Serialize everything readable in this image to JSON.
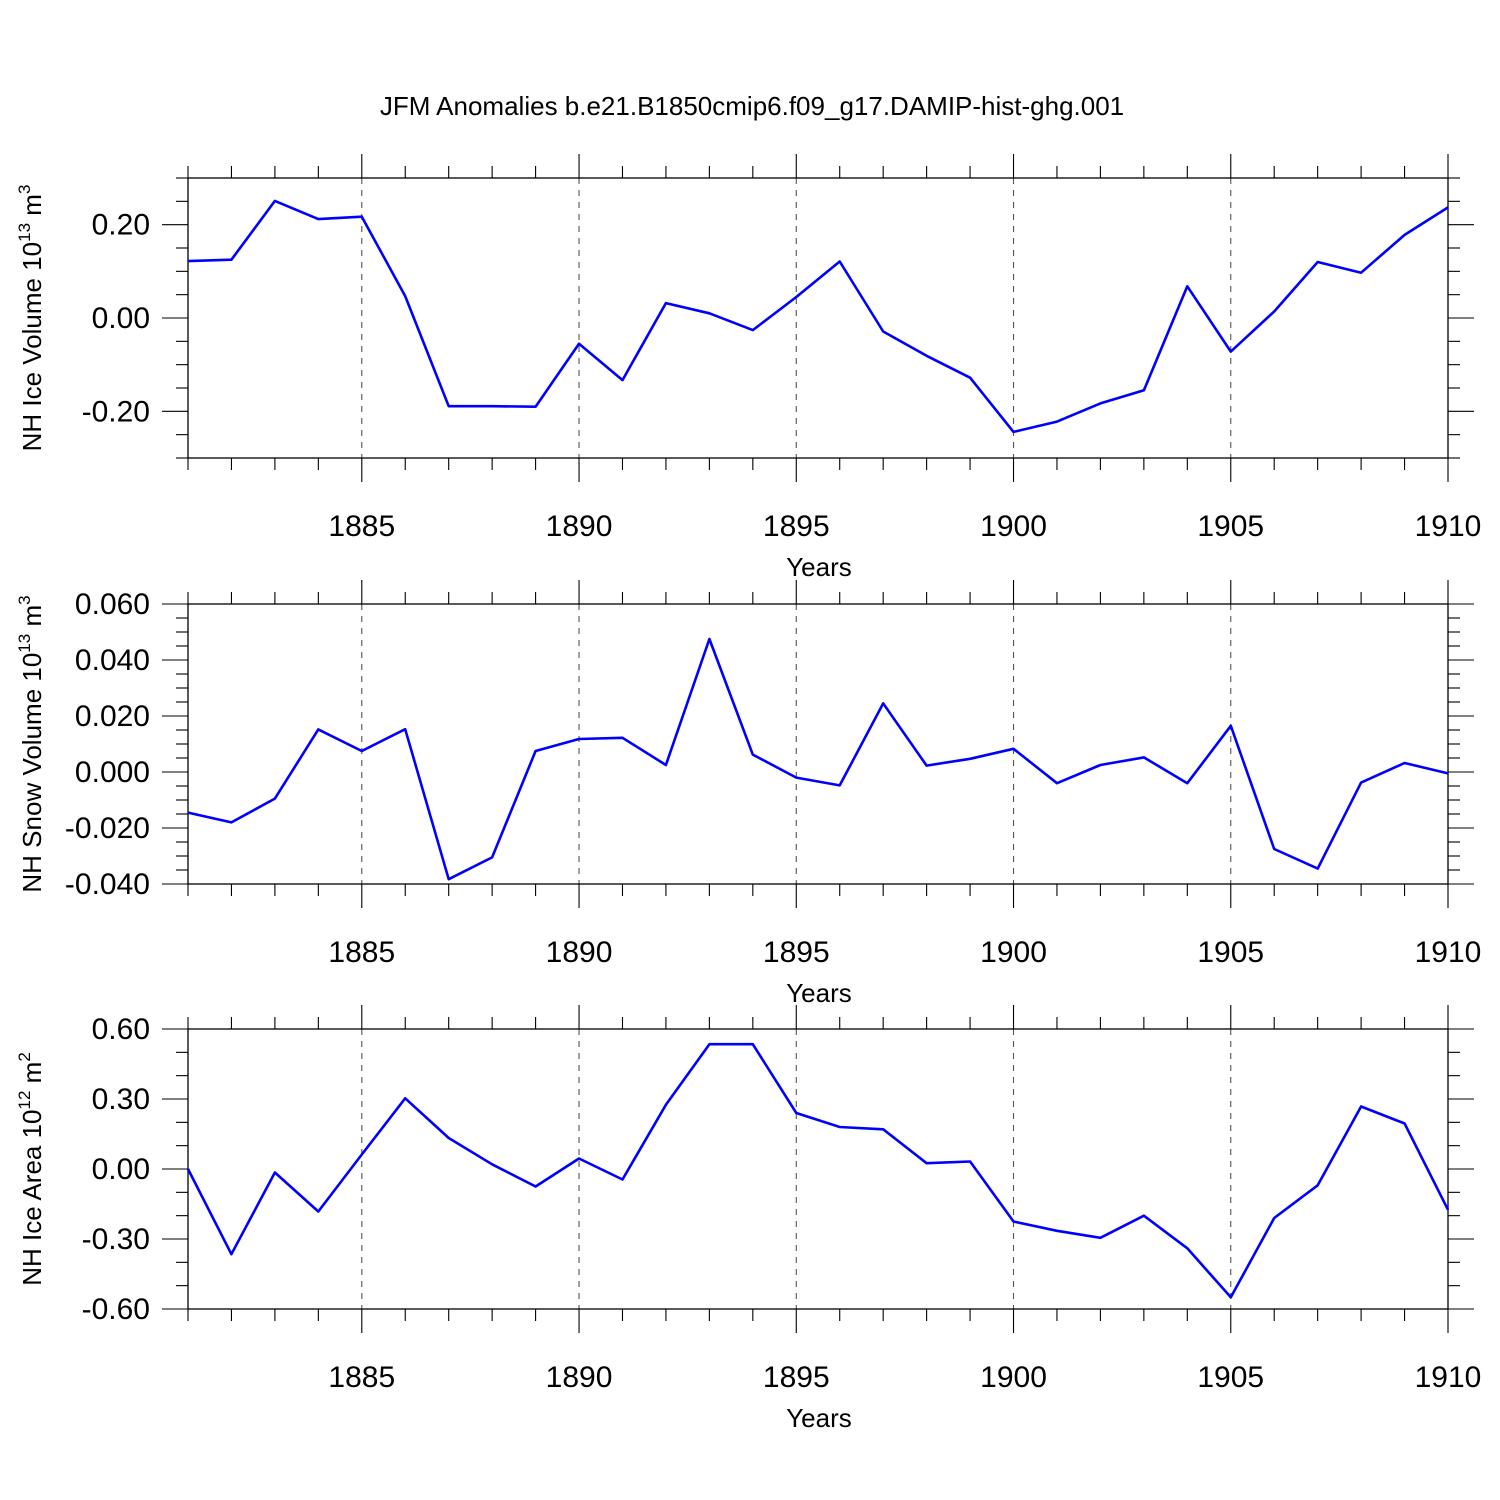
{
  "figure_title": "JFM Anomalies b.e21.B1850cmip6.f09_g17.DAMIP-hist-ghg.001",
  "colors": {
    "series": "#0000ff",
    "axes": "#000000",
    "grid": "#555555"
  },
  "chart_data": [
    {
      "type": "line",
      "xlabel": "Years",
      "ylabel": {
        "text": "NH Ice Volume 10",
        "sup": "13",
        "unit": " m",
        "unit_sup": "3"
      },
      "xlim": [
        1881,
        1910
      ],
      "ylim": [
        -0.3,
        0.3
      ],
      "xticks": [
        1885,
        1890,
        1895,
        1900,
        1905,
        1910
      ],
      "xtick_labels": [
        "1885",
        "1890",
        "1895",
        "1900",
        "1905",
        "1910"
      ],
      "yticks": [
        0.2,
        0.0,
        -0.2
      ],
      "ytick_labels": [
        "0.20",
        "0.00",
        "-0.20"
      ],
      "y_minor_step": 0.05,
      "grid": "x dashed",
      "x": [
        1881,
        1882,
        1883,
        1884,
        1885,
        1886,
        1887,
        1888,
        1889,
        1890,
        1891,
        1892,
        1893,
        1894,
        1895,
        1896,
        1897,
        1898,
        1899,
        1900,
        1901,
        1902,
        1903,
        1904,
        1905,
        1906,
        1907,
        1908,
        1909,
        1910
      ],
      "y": [
        0.122,
        0.125,
        0.251,
        0.212,
        0.217,
        0.047,
        -0.189,
        -0.189,
        -0.19,
        -0.055,
        -0.133,
        0.032,
        0.01,
        -0.026,
        0.045,
        0.121,
        -0.029,
        -0.081,
        -0.128,
        -0.244,
        -0.222,
        -0.183,
        -0.155,
        0.068,
        -0.072,
        0.014,
        0.12,
        0.097,
        0.178,
        0.237
      ]
    },
    {
      "type": "line",
      "xlabel": "Years",
      "ylabel": {
        "text": "NH Snow Volume 10",
        "sup": "13",
        "unit": " m",
        "unit_sup": "3"
      },
      "xlim": [
        1881,
        1910
      ],
      "ylim": [
        -0.04,
        0.06
      ],
      "xticks": [
        1885,
        1890,
        1895,
        1900,
        1905,
        1910
      ],
      "xtick_labels": [
        "1885",
        "1890",
        "1895",
        "1900",
        "1905",
        "1910"
      ],
      "yticks": [
        0.06,
        0.04,
        0.02,
        0.0,
        -0.02,
        -0.04
      ],
      "ytick_labels": [
        "0.060",
        "0.040",
        "0.020",
        "0.000",
        "-0.020",
        "-0.040"
      ],
      "y_minor_step": 0.005,
      "grid": "x dashed",
      "x": [
        1881,
        1882,
        1883,
        1884,
        1885,
        1886,
        1887,
        1888,
        1889,
        1890,
        1891,
        1892,
        1893,
        1894,
        1895,
        1896,
        1897,
        1898,
        1899,
        1900,
        1901,
        1902,
        1903,
        1904,
        1905,
        1906,
        1907,
        1908,
        1909,
        1910
      ],
      "y": [
        -0.0145,
        -0.018,
        -0.0095,
        0.0152,
        0.0075,
        0.0153,
        -0.0383,
        -0.0305,
        0.0075,
        0.0118,
        0.0122,
        0.0025,
        0.0475,
        0.0062,
        -0.002,
        -0.0048,
        0.0245,
        0.0023,
        0.0047,
        0.0083,
        -0.004,
        0.0025,
        0.0052,
        -0.004,
        0.0165,
        -0.0275,
        -0.0345,
        -0.0038,
        0.0032,
        -0.0005
      ]
    },
    {
      "type": "line",
      "xlabel": "Years",
      "ylabel": {
        "text": "NH Ice Area 10",
        "sup": "12",
        "unit": " m",
        "unit_sup": "2"
      },
      "xlim": [
        1881,
        1910
      ],
      "ylim": [
        -0.6,
        0.6
      ],
      "xticks": [
        1885,
        1890,
        1895,
        1900,
        1905,
        1910
      ],
      "xtick_labels": [
        "1885",
        "1890",
        "1895",
        "1900",
        "1905",
        "1910"
      ],
      "yticks": [
        0.6,
        0.3,
        0.0,
        -0.3,
        -0.6
      ],
      "ytick_labels": [
        "0.60",
        "0.30",
        "0.00",
        "-0.30",
        "-0.60"
      ],
      "y_minor_step": 0.1,
      "grid": "x dashed",
      "x": [
        1881,
        1882,
        1883,
        1884,
        1885,
        1886,
        1887,
        1888,
        1889,
        1890,
        1891,
        1892,
        1893,
        1894,
        1895,
        1896,
        1897,
        1898,
        1899,
        1900,
        1901,
        1902,
        1903,
        1904,
        1905,
        1906,
        1907,
        1908,
        1909,
        1910
      ],
      "y": [
        0.0,
        -0.365,
        -0.015,
        -0.182,
        0.062,
        0.303,
        0.133,
        0.02,
        -0.075,
        0.045,
        -0.045,
        0.275,
        0.535,
        0.535,
        0.24,
        0.18,
        0.17,
        0.025,
        0.032,
        -0.225,
        -0.265,
        -0.295,
        -0.2,
        -0.34,
        -0.55,
        -0.21,
        -0.07,
        0.268,
        0.195,
        -0.175
      ]
    }
  ]
}
